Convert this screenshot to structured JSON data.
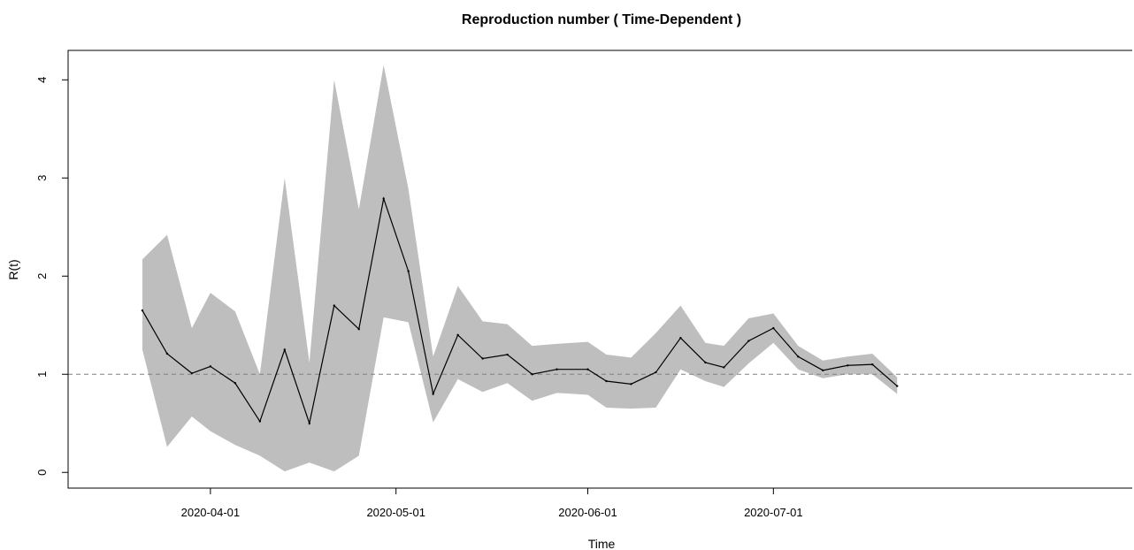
{
  "chart_data": {
    "type": "line",
    "title": "Reproduction number ( Time-Dependent )",
    "xlabel": "Time",
    "ylabel": "R(t)",
    "x_tick_labels": [
      "2020-04-01",
      "2020-05-01",
      "2020-06-01",
      "2020-07-01"
    ],
    "y_tick_labels": [
      "0",
      "1",
      "2",
      "3",
      "4"
    ],
    "xlim": [
      "2020-03-09",
      "2020-08-28"
    ],
    "ylim": [
      -0.16,
      4.3
    ],
    "reference_line": {
      "y": 1,
      "style": "dashed",
      "color": "#808080"
    },
    "colors": {
      "band": "#bebebe",
      "line": "#000000",
      "frame": "#000000"
    },
    "series": [
      {
        "x": [
          "2020-03-21",
          "2020-03-25",
          "2020-03-29",
          "2020-04-01",
          "2020-04-05",
          "2020-04-09",
          "2020-04-13",
          "2020-04-17",
          "2020-04-21",
          "2020-04-25",
          "2020-04-29",
          "2020-05-03",
          "2020-05-07",
          "2020-05-11",
          "2020-05-15",
          "2020-05-19",
          "2020-05-23",
          "2020-05-27",
          "2020-06-01",
          "2020-06-04",
          "2020-06-08",
          "2020-06-12",
          "2020-06-16",
          "2020-06-20",
          "2020-06-23",
          "2020-06-27",
          "2020-07-01",
          "2020-07-05",
          "2020-07-09",
          "2020-07-13",
          "2020-07-17",
          "2020-07-21"
        ],
        "values": [
          1.65,
          1.21,
          1.01,
          1.08,
          0.91,
          0.52,
          1.25,
          0.5,
          1.7,
          1.46,
          2.79,
          2.05,
          0.8,
          1.4,
          1.16,
          1.2,
          1.0,
          1.05,
          1.05,
          0.93,
          0.9,
          1.02,
          1.37,
          1.12,
          1.07,
          1.34,
          1.47,
          1.18,
          1.04,
          1.09,
          1.1,
          0.88
        ],
        "lower": [
          1.25,
          0.26,
          0.57,
          0.42,
          0.28,
          0.17,
          0.01,
          0.1,
          0.01,
          0.17,
          1.58,
          1.53,
          0.51,
          0.95,
          0.82,
          0.91,
          0.73,
          0.81,
          0.79,
          0.66,
          0.65,
          0.66,
          1.05,
          0.93,
          0.87,
          1.11,
          1.32,
          1.05,
          0.96,
          1.0,
          1.0,
          0.8
        ],
        "upper": [
          2.17,
          2.42,
          1.47,
          1.83,
          1.64,
          1.0,
          3.0,
          1.12,
          4.0,
          2.68,
          4.15,
          2.89,
          1.18,
          1.9,
          1.54,
          1.51,
          1.29,
          1.31,
          1.33,
          1.2,
          1.17,
          1.42,
          1.7,
          1.32,
          1.29,
          1.57,
          1.62,
          1.29,
          1.14,
          1.18,
          1.21,
          0.97
        ]
      }
    ]
  }
}
